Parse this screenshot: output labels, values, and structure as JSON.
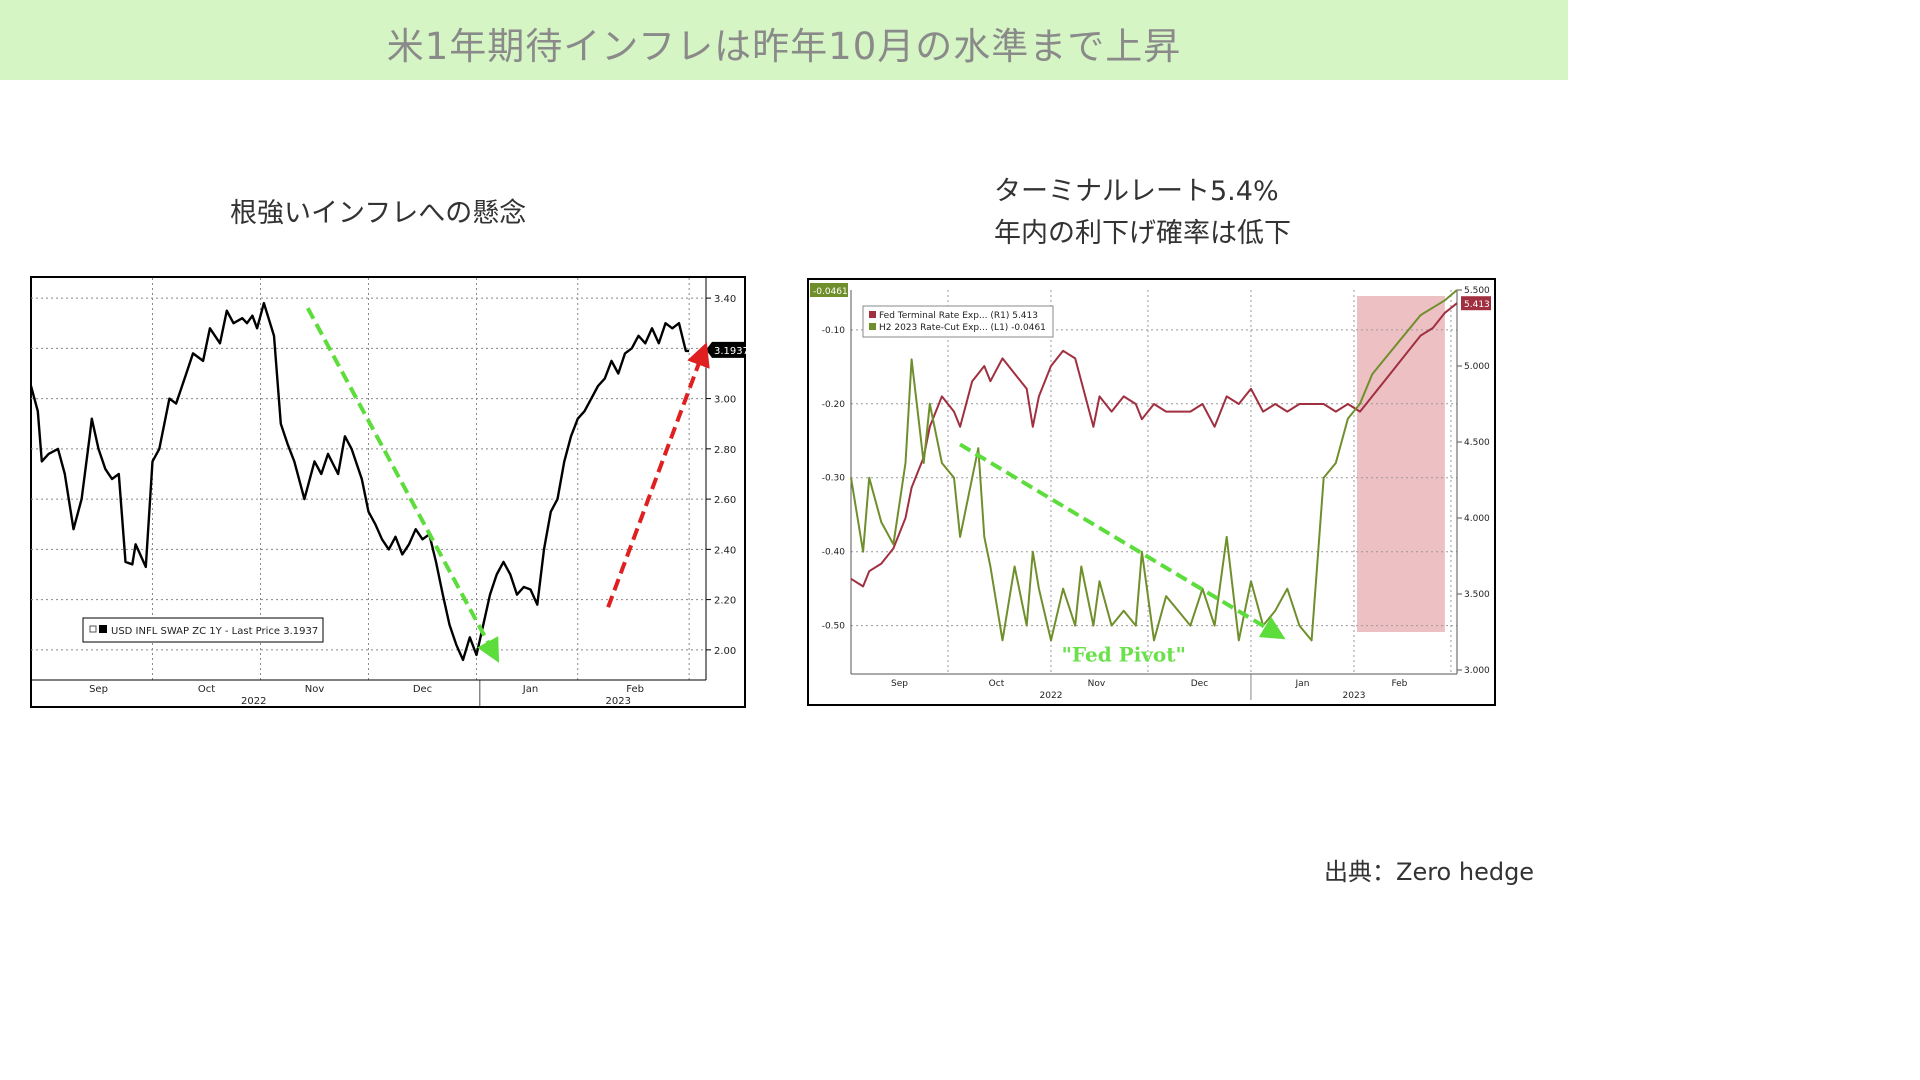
{
  "page": {
    "title": "米1年期待インフレは昨年10月の水準まで上昇",
    "source": "出典：Zero hedge"
  },
  "chart_data": [
    {
      "type": "line",
      "title": "根強いインフレへの懸念",
      "x_tick_labels": [
        "Sep",
        "Oct",
        "Nov",
        "Dec",
        "Jan",
        "Feb"
      ],
      "year_labels": [
        "2022",
        "2023"
      ],
      "ylim": [
        1.88,
        3.48
      ],
      "y_ticks": [
        2.0,
        2.2,
        2.4,
        2.6,
        2.8,
        3.0,
        3.2,
        3.4
      ],
      "y_tick_labels": [
        "2.00",
        "2.20",
        "2.40",
        "2.60",
        "2.80",
        "3.00",
        "3.20",
        "3.40"
      ],
      "grid": true,
      "legend": "bottom-left",
      "legend_text": "USD INFL SWAP ZC 1Y - Last Price 3.1937",
      "last_value_label": "3.1937",
      "series": [
        {
          "name": "USD INFL SWAP ZC 1Y - Last Price",
          "color": "#000000",
          "x": [
            0.0,
            0.01,
            0.016,
            0.026,
            0.04,
            0.05,
            0.063,
            0.075,
            0.087,
            0.09,
            0.1,
            0.11,
            0.12,
            0.13,
            0.14,
            0.15,
            0.155,
            0.17,
            0.18,
            0.19,
            0.205,
            0.215,
            0.23,
            0.24,
            0.255,
            0.265,
            0.28,
            0.29,
            0.3,
            0.313,
            0.32,
            0.328,
            0.335,
            0.345,
            0.36,
            0.37,
            0.38,
            0.39,
            0.405,
            0.42,
            0.43,
            0.44,
            0.455,
            0.465,
            0.475,
            0.49,
            0.5,
            0.51,
            0.52,
            0.53,
            0.54,
            0.55,
            0.56,
            0.57,
            0.58,
            0.59,
            0.6,
            0.61,
            0.62,
            0.63,
            0.64,
            0.65,
            0.66,
            0.67,
            0.68,
            0.69,
            0.7,
            0.71,
            0.72,
            0.73,
            0.74,
            0.75,
            0.76,
            0.77,
            0.78,
            0.79,
            0.8,
            0.81,
            0.82,
            0.83,
            0.84,
            0.85,
            0.86,
            0.87,
            0.88,
            0.89,
            0.9,
            0.91,
            0.92,
            0.93,
            0.94,
            0.95,
            0.96,
            0.97,
            0.975
          ],
          "y": [
            3.05,
            2.95,
            2.75,
            2.78,
            2.8,
            2.7,
            2.48,
            2.6,
            2.85,
            2.92,
            2.8,
            2.72,
            2.68,
            2.7,
            2.35,
            2.34,
            2.42,
            2.33,
            2.75,
            2.8,
            3.0,
            2.98,
            3.1,
            3.18,
            3.15,
            3.28,
            3.22,
            3.35,
            3.3,
            3.32,
            3.3,
            3.33,
            3.28,
            3.38,
            3.25,
            2.9,
            2.82,
            2.75,
            2.6,
            2.75,
            2.7,
            2.78,
            2.7,
            2.85,
            2.8,
            2.68,
            2.55,
            2.5,
            2.44,
            2.4,
            2.45,
            2.38,
            2.42,
            2.48,
            2.44,
            2.46,
            2.35,
            2.22,
            2.1,
            2.02,
            1.96,
            2.05,
            1.98,
            2.1,
            2.22,
            2.3,
            2.35,
            2.3,
            2.22,
            2.25,
            2.24,
            2.18,
            2.4,
            2.55,
            2.6,
            2.75,
            2.85,
            2.92,
            2.95,
            3.0,
            3.05,
            3.08,
            3.15,
            3.1,
            3.18,
            3.2,
            3.25,
            3.22,
            3.28,
            3.22,
            3.3,
            3.28,
            3.3,
            3.19,
            3.19
          ]
        }
      ]
    },
    {
      "type": "line",
      "title": "ターミナルレート5.4%\n年内の利下げ確率は低下",
      "x_tick_labels": [
        "Sep",
        "Oct",
        "Nov",
        "Dec",
        "Jan",
        "Feb"
      ],
      "year_labels": [
        "2022",
        "2023"
      ],
      "left_ylim": [
        -0.56,
        -0.0461
      ],
      "left_y_ticks": [
        -0.1,
        -0.2,
        -0.3,
        -0.4,
        -0.5
      ],
      "left_y_tick_labels": [
        "-0.10",
        "-0.20",
        "-0.30",
        "-0.40",
        "-0.50"
      ],
      "right_ylim": [
        3.0,
        5.5
      ],
      "right_y_ticks": [
        3.0,
        3.5,
        4.0,
        4.5,
        5.0,
        5.5
      ],
      "right_y_tick_labels": [
        "3.000",
        "3.500",
        "4.000",
        "4.500",
        "5.000",
        "5.500"
      ],
      "grid": true,
      "legend": "top-left",
      "legend_items": [
        "Fed Terminal Rate Exp... (R1)  5.413",
        "H2 2023 Rate-Cut Exp... (L1)  -0.0461"
      ],
      "last_value_labels": {
        "left": "-0.0461",
        "right": "5.413"
      },
      "annotation": "\"Fed Pivot\"",
      "series": [
        {
          "name": "Fed Terminal Rate Exp...",
          "axis": "right",
          "color": "#a03040",
          "x": [
            0.0,
            0.02,
            0.03,
            0.05,
            0.07,
            0.09,
            0.1,
            0.12,
            0.13,
            0.15,
            0.17,
            0.18,
            0.2,
            0.21,
            0.22,
            0.23,
            0.25,
            0.27,
            0.29,
            0.3,
            0.31,
            0.33,
            0.35,
            0.37,
            0.38,
            0.4,
            0.41,
            0.43,
            0.45,
            0.47,
            0.48,
            0.5,
            0.52,
            0.54,
            0.56,
            0.58,
            0.6,
            0.62,
            0.64,
            0.66,
            0.68,
            0.7,
            0.72,
            0.74,
            0.76,
            0.78,
            0.8,
            0.82,
            0.84,
            0.86,
            0.88,
            0.9,
            0.92,
            0.94,
            0.96,
            0.98,
            1.0
          ],
          "y": [
            3.6,
            3.55,
            3.65,
            3.7,
            3.8,
            4.0,
            4.2,
            4.4,
            4.6,
            4.8,
            4.7,
            4.6,
            4.9,
            4.95,
            5.0,
            4.9,
            5.05,
            4.95,
            4.85,
            4.6,
            4.8,
            5.0,
            5.1,
            5.05,
            4.9,
            4.6,
            4.8,
            4.7,
            4.8,
            4.75,
            4.65,
            4.75,
            4.7,
            4.7,
            4.7,
            4.75,
            4.6,
            4.8,
            4.75,
            4.85,
            4.7,
            4.75,
            4.7,
            4.75,
            4.75,
            4.75,
            4.7,
            4.75,
            4.7,
            4.8,
            4.9,
            5.0,
            5.1,
            5.2,
            5.25,
            5.35,
            5.413
          ]
        },
        {
          "name": "H2 2023 Rate-Cut Exp...",
          "axis": "left",
          "color": "#6f8f2c",
          "x": [
            0.0,
            0.02,
            0.03,
            0.05,
            0.07,
            0.09,
            0.1,
            0.12,
            0.13,
            0.15,
            0.17,
            0.18,
            0.2,
            0.21,
            0.22,
            0.23,
            0.25,
            0.27,
            0.29,
            0.3,
            0.31,
            0.33,
            0.35,
            0.37,
            0.38,
            0.4,
            0.41,
            0.43,
            0.45,
            0.47,
            0.48,
            0.5,
            0.52,
            0.54,
            0.56,
            0.58,
            0.6,
            0.62,
            0.64,
            0.66,
            0.68,
            0.7,
            0.72,
            0.74,
            0.76,
            0.78,
            0.8,
            0.82,
            0.84,
            0.86,
            0.88,
            0.9,
            0.92,
            0.94,
            0.96,
            0.98,
            1.0
          ],
          "y": [
            -0.3,
            -0.4,
            -0.3,
            -0.36,
            -0.39,
            -0.28,
            -0.14,
            -0.28,
            -0.2,
            -0.28,
            -0.3,
            -0.38,
            -0.3,
            -0.26,
            -0.38,
            -0.42,
            -0.52,
            -0.42,
            -0.5,
            -0.4,
            -0.45,
            -0.52,
            -0.45,
            -0.5,
            -0.42,
            -0.5,
            -0.44,
            -0.5,
            -0.48,
            -0.5,
            -0.4,
            -0.52,
            -0.46,
            -0.48,
            -0.5,
            -0.45,
            -0.5,
            -0.38,
            -0.52,
            -0.44,
            -0.5,
            -0.48,
            -0.45,
            -0.5,
            -0.52,
            -0.3,
            -0.28,
            -0.22,
            -0.2,
            -0.16,
            -0.14,
            -0.12,
            -0.1,
            -0.08,
            -0.07,
            -0.06,
            -0.0461
          ]
        }
      ]
    }
  ]
}
